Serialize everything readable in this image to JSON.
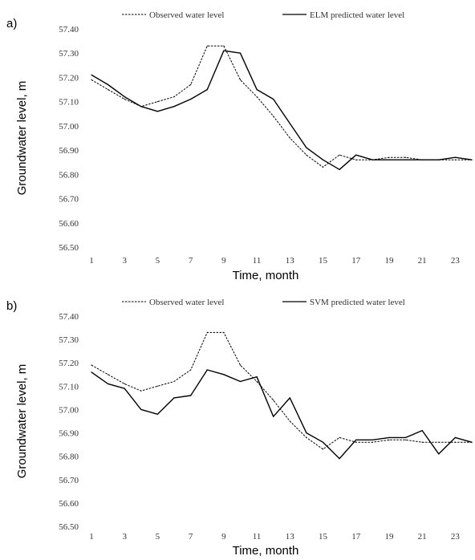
{
  "chart_data": [
    {
      "type": "line",
      "panel_label": "a)",
      "title": "",
      "xlabel": "Time, month",
      "ylabel": "Groundwater level, m",
      "ylim": [
        56.5,
        57.4
      ],
      "xlim": [
        1,
        24
      ],
      "y_ticks": [
        "57.40",
        "57.30",
        "57.20",
        "57.10",
        "57.00",
        "56.90",
        "56.80",
        "56.70",
        "56.60",
        "56.50"
      ],
      "x_ticks": [
        "1",
        "3",
        "5",
        "7",
        "9",
        "11",
        "13",
        "15",
        "17",
        "19",
        "21",
        "23"
      ],
      "grid": false,
      "legend_position": "top",
      "x": [
        1,
        2,
        3,
        4,
        5,
        6,
        7,
        8,
        9,
        10,
        11,
        12,
        13,
        14,
        15,
        16,
        17,
        18,
        19,
        20,
        21,
        22,
        23,
        24
      ],
      "series": [
        {
          "name": "Observed water level",
          "style": "dashed",
          "values": [
            57.19,
            57.15,
            57.11,
            57.08,
            57.1,
            57.12,
            57.17,
            57.33,
            57.33,
            57.19,
            57.12,
            57.04,
            56.95,
            56.88,
            56.83,
            56.88,
            56.86,
            56.86,
            56.87,
            56.87,
            56.86,
            56.86,
            56.86,
            56.86
          ]
        },
        {
          "name": "ELM predicted water level",
          "style": "solid",
          "values": [
            57.21,
            57.17,
            57.12,
            57.08,
            57.06,
            57.08,
            57.11,
            57.15,
            57.31,
            57.3,
            57.15,
            57.11,
            57.01,
            56.91,
            56.86,
            56.82,
            56.88,
            56.86,
            56.86,
            56.86,
            56.86,
            56.86,
            56.87,
            56.86
          ]
        }
      ]
    },
    {
      "type": "line",
      "panel_label": "b)",
      "title": "",
      "xlabel": "Time, month",
      "ylabel": "Groundwater level, m",
      "ylim": [
        56.5,
        57.4
      ],
      "xlim": [
        1,
        24
      ],
      "y_ticks": [
        "57.40",
        "57.30",
        "57.20",
        "57.10",
        "57.00",
        "56.90",
        "56.80",
        "56.70",
        "56.60",
        "56.50"
      ],
      "x_ticks": [
        "1",
        "3",
        "5",
        "7",
        "9",
        "11",
        "13",
        "15",
        "17",
        "19",
        "21",
        "23"
      ],
      "grid": false,
      "legend_position": "top",
      "x": [
        1,
        2,
        3,
        4,
        5,
        6,
        7,
        8,
        9,
        10,
        11,
        12,
        13,
        14,
        15,
        16,
        17,
        18,
        19,
        20,
        21,
        22,
        23,
        24
      ],
      "series": [
        {
          "name": "Observed water level",
          "style": "dashed",
          "values": [
            57.19,
            57.15,
            57.11,
            57.08,
            57.1,
            57.12,
            57.17,
            57.33,
            57.33,
            57.19,
            57.12,
            57.04,
            56.95,
            56.88,
            56.83,
            56.88,
            56.86,
            56.86,
            56.87,
            56.87,
            56.86,
            56.86,
            56.86,
            56.86
          ]
        },
        {
          "name": "SVM predicted water level",
          "style": "solid",
          "values": [
            57.16,
            57.11,
            57.09,
            57.0,
            56.98,
            57.05,
            57.06,
            57.17,
            57.15,
            57.12,
            57.14,
            56.97,
            57.05,
            56.9,
            56.86,
            56.79,
            56.87,
            56.87,
            56.88,
            56.88,
            56.91,
            56.81,
            56.88,
            56.86
          ]
        }
      ]
    }
  ]
}
